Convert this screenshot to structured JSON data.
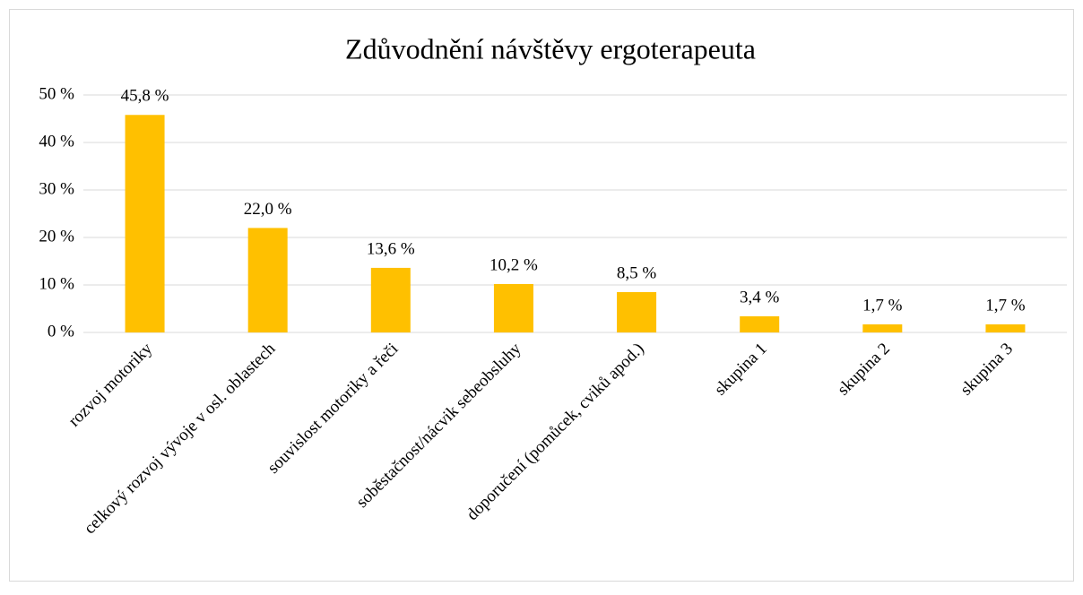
{
  "chart_data": {
    "type": "bar",
    "title": "Zdůvodnění návštěvy ergoterapeuta",
    "categories": [
      "rozvoj motoriky",
      "celkový rozvoj vývoje v osl. oblastech",
      "souvislost motoriky a řeči",
      "soběstačnost/nácvik sebeobsluhy",
      "doporučení (pomůcek, cviků apod.)",
      "skupina 1",
      "skupina 2",
      "skupina 3"
    ],
    "values": [
      45.8,
      22.0,
      13.6,
      10.2,
      8.5,
      3.4,
      1.7,
      1.7
    ],
    "value_labels": [
      "45,8 %",
      "22,0 %",
      "13,6 %",
      "10,2 %",
      "8,5 %",
      "3,4 %",
      "1,7 %",
      "1,7 %"
    ],
    "color": "#ffc000",
    "ylim": [
      0,
      50
    ],
    "yticks": [
      {
        "value": 0,
        "label": "0 %"
      },
      {
        "value": 10,
        "label": "10 %"
      },
      {
        "value": 20,
        "label": "20 %"
      },
      {
        "value": 30,
        "label": "30 %"
      },
      {
        "value": 40,
        "label": "40 %"
      },
      {
        "value": 50,
        "label": "50 %"
      }
    ],
    "grid": true
  }
}
